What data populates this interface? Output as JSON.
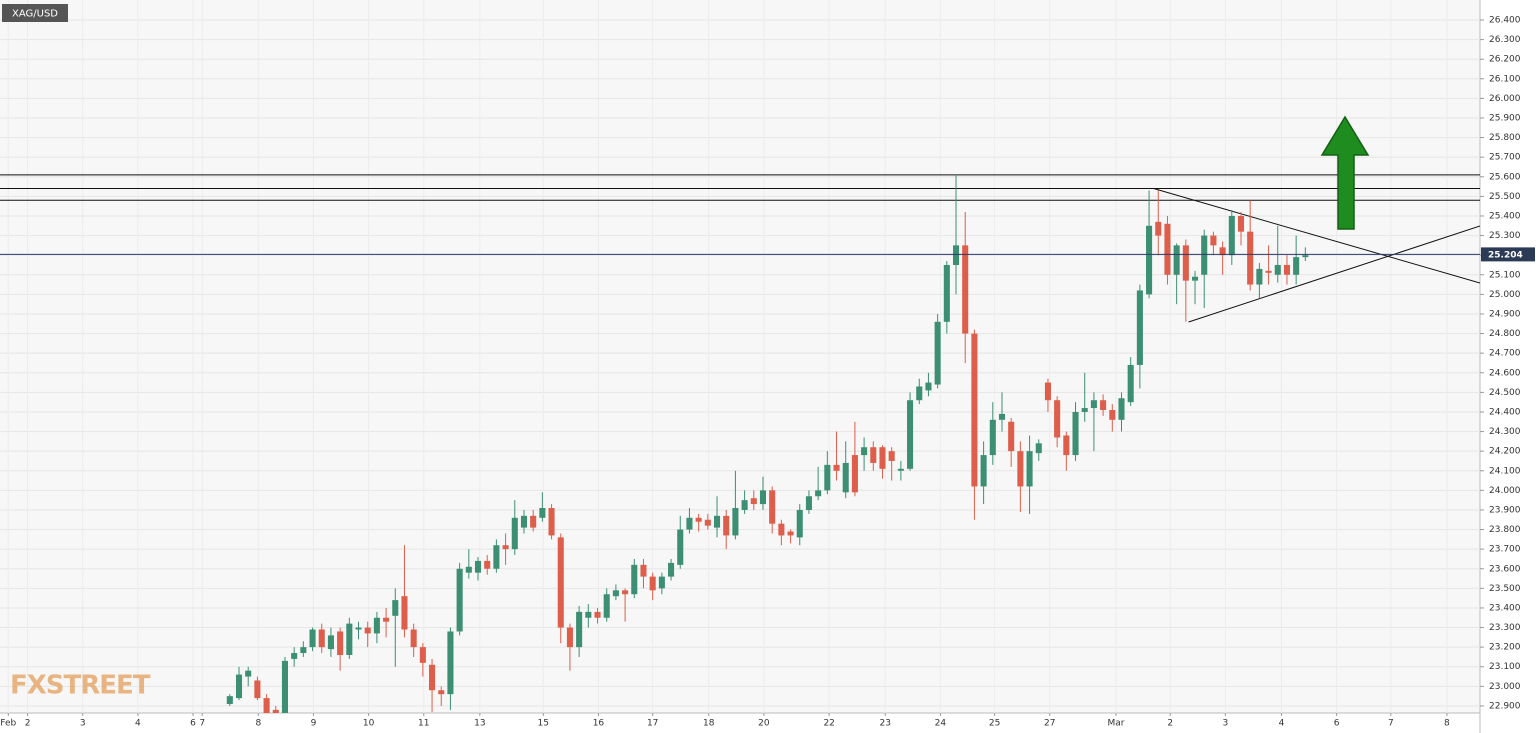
{
  "chart_data": {
    "type": "candlestick",
    "title": "XAG/USD",
    "watermark": "FXSTREET",
    "open": [
      22.91,
      22.94,
      23.05,
      23.03,
      22.94,
      22.88,
      22.86,
      23.14,
      23.17,
      23.2,
      23.29,
      23.19,
      23.28,
      23.16,
      23.29,
      23.3,
      23.27,
      23.35,
      23.36,
      23.46,
      23.29,
      23.2,
      23.11,
      22.98,
      22.96,
      23.28,
      23.58,
      23.58,
      23.64,
      23.6,
      23.72,
      23.7,
      23.81,
      23.87,
      23.86,
      23.91,
      23.76,
      23.3,
      23.2,
      23.35,
      23.38,
      23.35,
      23.46,
      23.49,
      23.47,
      23.62,
      23.56,
      23.5,
      23.56,
      23.62,
      23.8,
      23.86,
      23.85,
      23.81,
      23.87,
      23.77,
      23.9,
      23.96,
      23.93,
      24.0,
      23.83,
      23.79,
      23.76,
      23.9,
      23.97,
      24.0,
      24.13,
      23.99,
      24.18,
      24.18,
      24.22,
      24.22,
      24.2,
      24.1,
      24.11,
      24.46,
      24.51,
      24.54,
      24.86,
      25.15,
      25.25,
      24.8,
      24.02,
      24.18,
      24.36,
      24.35,
      24.2,
      24.02,
      24.19,
      24.55,
      24.46,
      24.28,
      24.18,
      24.4,
      24.42,
      24.46,
      24.41,
      24.36,
      24.45,
      24.64,
      25.0,
      25.37,
      25.36,
      25.1,
      25.25,
      25.07,
      25.1,
      25.3,
      25.24,
      25.2,
      25.4,
      25.32,
      25.05,
      25.12,
      25.1,
      25.15,
      25.1,
      25.19
    ],
    "high": [
      22.96,
      23.1,
      23.1,
      23.05,
      22.96,
      22.9,
      23.15,
      23.2,
      23.23,
      23.3,
      23.32,
      23.3,
      23.3,
      23.35,
      23.33,
      23.33,
      23.38,
      23.4,
      23.5,
      23.72,
      23.32,
      23.22,
      23.14,
      23.0,
      23.3,
      23.63,
      23.7,
      23.66,
      23.67,
      23.75,
      23.78,
      23.95,
      23.9,
      23.9,
      23.99,
      23.93,
      23.78,
      23.32,
      23.41,
      23.42,
      23.4,
      23.5,
      23.52,
      23.5,
      23.65,
      23.65,
      23.58,
      23.58,
      23.65,
      23.87,
      23.91,
      23.88,
      23.88,
      23.97,
      23.9,
      24.1,
      24.0,
      24.0,
      24.07,
      24.02,
      23.85,
      23.8,
      23.93,
      24.0,
      24.12,
      24.2,
      24.3,
      24.25,
      24.35,
      24.27,
      24.25,
      24.23,
      24.22,
      24.15,
      24.5,
      24.57,
      24.6,
      24.9,
      25.17,
      25.61,
      25.42,
      24.82,
      24.25,
      24.45,
      24.5,
      24.37,
      24.25,
      24.28,
      24.26,
      24.57,
      24.48,
      24.3,
      24.45,
      24.6,
      24.5,
      24.49,
      24.44,
      24.5,
      24.68,
      25.05,
      25.53,
      25.53,
      25.4,
      25.26,
      25.28,
      25.12,
      25.33,
      25.32,
      25.27,
      25.43,
      25.42,
      25.48,
      25.16,
      25.25,
      25.35,
      25.2,
      25.3,
      25.24
    ],
    "low": [
      22.9,
      22.93,
      23.0,
      22.93,
      22.85,
      22.84,
      22.85,
      23.1,
      23.15,
      23.18,
      23.17,
      23.15,
      23.08,
      23.14,
      23.24,
      23.2,
      23.22,
      23.25,
      23.1,
      23.25,
      23.15,
      23.05,
      22.87,
      22.9,
      22.88,
      23.26,
      23.55,
      23.54,
      23.57,
      23.58,
      23.62,
      23.67,
      23.78,
      23.79,
      23.84,
      23.75,
      23.22,
      23.08,
      23.15,
      23.3,
      23.32,
      23.33,
      23.44,
      23.33,
      23.45,
      23.5,
      23.44,
      23.47,
      23.54,
      23.6,
      23.78,
      23.79,
      23.8,
      23.76,
      23.7,
      23.75,
      23.88,
      23.9,
      23.9,
      23.78,
      23.72,
      23.73,
      23.72,
      23.88,
      23.95,
      23.98,
      24.05,
      23.96,
      23.97,
      24.1,
      24.1,
      24.06,
      24.05,
      24.05,
      24.1,
      24.44,
      24.48,
      24.52,
      24.8,
      25.0,
      24.65,
      23.85,
      23.93,
      24.13,
      24.3,
      24.12,
      23.89,
      23.88,
      24.15,
      24.4,
      24.22,
      24.1,
      24.15,
      24.35,
      24.2,
      24.38,
      24.3,
      24.3,
      24.43,
      24.52,
      24.98,
      25.2,
      25.05,
      24.95,
      24.86,
      24.95,
      24.93,
      25.2,
      25.1,
      25.15,
      25.25,
      25.02,
      24.98,
      25.05,
      25.06,
      25.05,
      25.05,
      25.17
    ],
    "close": [
      22.95,
      23.06,
      23.08,
      22.94,
      22.86,
      22.85,
      23.13,
      23.17,
      23.2,
      23.29,
      23.2,
      23.26,
      23.16,
      23.32,
      23.3,
      23.27,
      23.35,
      23.33,
      23.44,
      23.29,
      23.2,
      23.12,
      22.98,
      22.96,
      23.28,
      23.6,
      23.61,
      23.64,
      23.6,
      23.72,
      23.7,
      23.86,
      23.87,
      23.81,
      23.91,
      23.77,
      23.3,
      23.2,
      23.38,
      23.38,
      23.35,
      23.47,
      23.49,
      23.47,
      23.62,
      23.56,
      23.49,
      23.56,
      23.63,
      23.8,
      23.86,
      23.84,
      23.82,
      23.87,
      23.77,
      23.91,
      23.95,
      23.93,
      24.0,
      23.83,
      23.77,
      23.77,
      23.9,
      23.97,
      24.0,
      24.13,
      24.1,
      24.14,
      23.99,
      24.22,
      24.14,
      24.11,
      24.15,
      24.11,
      24.46,
      24.53,
      24.55,
      24.86,
      25.15,
      25.25,
      24.8,
      24.02,
      24.18,
      24.36,
      24.39,
      24.2,
      24.02,
      24.2,
      24.24,
      24.46,
      24.27,
      24.18,
      24.4,
      24.42,
      24.46,
      24.41,
      24.36,
      24.47,
      24.64,
      25.02,
      25.35,
      25.3,
      25.1,
      25.25,
      25.07,
      25.09,
      25.3,
      25.25,
      25.2,
      25.4,
      25.32,
      25.05,
      25.13,
      25.11,
      25.15,
      25.1,
      25.19,
      25.2
    ],
    "up_color": "#3c8f73",
    "down_color": "#dd5e4b",
    "last_price": 25.204,
    "levels": [
      25.61,
      25.54,
      25.48
    ],
    "trendlines": [
      {
        "x": [
          100.5,
          136
        ],
        "y": [
          25.54,
          25.058
        ]
      },
      {
        "x": [
          104.3,
          136
        ],
        "y": [
          24.859,
          25.349
        ]
      }
    ],
    "xlim": [
      -25,
      136
    ],
    "ylim": [
      22.864,
      26.502
    ],
    "grid": true,
    "xticks": [
      {
        "value": -24.1,
        "label": "Feb"
      },
      {
        "value": -22.0,
        "label": "2"
      },
      {
        "value": -16.0,
        "label": "3"
      },
      {
        "value": -10.0,
        "label": "4"
      },
      {
        "value": -4.0,
        "label": "6"
      },
      {
        "value": -3.0,
        "label": "7"
      },
      {
        "value": 3.1,
        "label": "8"
      },
      {
        "value": 9.1,
        "label": "9"
      },
      {
        "value": 15.1,
        "label": "10"
      },
      {
        "value": 21.1,
        "label": "11"
      },
      {
        "value": 27.2,
        "label": "13"
      },
      {
        "value": 34.1,
        "label": "15"
      },
      {
        "value": 40.1,
        "label": "16"
      },
      {
        "value": 46.0,
        "label": "17"
      },
      {
        "value": 52.1,
        "label": "18"
      },
      {
        "value": 58.1,
        "label": "20"
      },
      {
        "value": 65.2,
        "label": "22"
      },
      {
        "value": 71.3,
        "label": "23"
      },
      {
        "value": 77.3,
        "label": "24"
      },
      {
        "value": 83.2,
        "label": "25"
      },
      {
        "value": 89.2,
        "label": "27"
      },
      {
        "value": 96.4,
        "label": "Mar"
      },
      {
        "value": 102.3,
        "label": "2"
      },
      {
        "value": 108.3,
        "label": "3"
      },
      {
        "value": 114.4,
        "label": "4"
      },
      {
        "value": 120.4,
        "label": "6"
      },
      {
        "value": 126.3,
        "label": "7"
      },
      {
        "value": 132.4,
        "label": "8"
      }
    ],
    "yticks": [
      {
        "value": 22.9,
        "label": "22.900"
      },
      {
        "value": 23.0,
        "label": "23.000"
      },
      {
        "value": 23.1,
        "label": "23.100"
      },
      {
        "value": 23.2,
        "label": "23.200"
      },
      {
        "value": 23.3,
        "label": "23.300"
      },
      {
        "value": 23.4,
        "label": "23.400"
      },
      {
        "value": 23.5,
        "label": "23.500"
      },
      {
        "value": 23.6,
        "label": "23.600"
      },
      {
        "value": 23.7,
        "label": "23.700"
      },
      {
        "value": 23.8,
        "label": "23.800"
      },
      {
        "value": 23.9,
        "label": "23.900"
      },
      {
        "value": 24.0,
        "label": "24.000"
      },
      {
        "value": 24.1,
        "label": "24.100"
      },
      {
        "value": 24.2,
        "label": "24.200"
      },
      {
        "value": 24.3,
        "label": "24.300"
      },
      {
        "value": 24.4,
        "label": "24.400"
      },
      {
        "value": 24.5,
        "label": "24.500"
      },
      {
        "value": 24.6,
        "label": "24.600"
      },
      {
        "value": 24.7,
        "label": "24.700"
      },
      {
        "value": 24.8,
        "label": "24.800"
      },
      {
        "value": 24.9,
        "label": "24.900"
      },
      {
        "value": 25.0,
        "label": "25.000"
      },
      {
        "value": 25.1,
        "label": "25.100"
      },
      {
        "value": 25.2,
        "label": "25.200"
      },
      {
        "value": 25.3,
        "label": "25.300"
      },
      {
        "value": 25.4,
        "label": "25.400"
      },
      {
        "value": 25.5,
        "label": "25.500"
      },
      {
        "value": 25.6,
        "label": "25.600"
      },
      {
        "value": 25.7,
        "label": "25.700"
      },
      {
        "value": 25.8,
        "label": "25.800"
      },
      {
        "value": 25.9,
        "label": "25.900"
      },
      {
        "value": 26.0,
        "label": "26.000"
      },
      {
        "value": 26.1,
        "label": "26.100"
      },
      {
        "value": 26.2,
        "label": "26.200"
      },
      {
        "value": 26.3,
        "label": "26.300"
      },
      {
        "value": 26.4,
        "label": "26.400"
      }
    ]
  }
}
